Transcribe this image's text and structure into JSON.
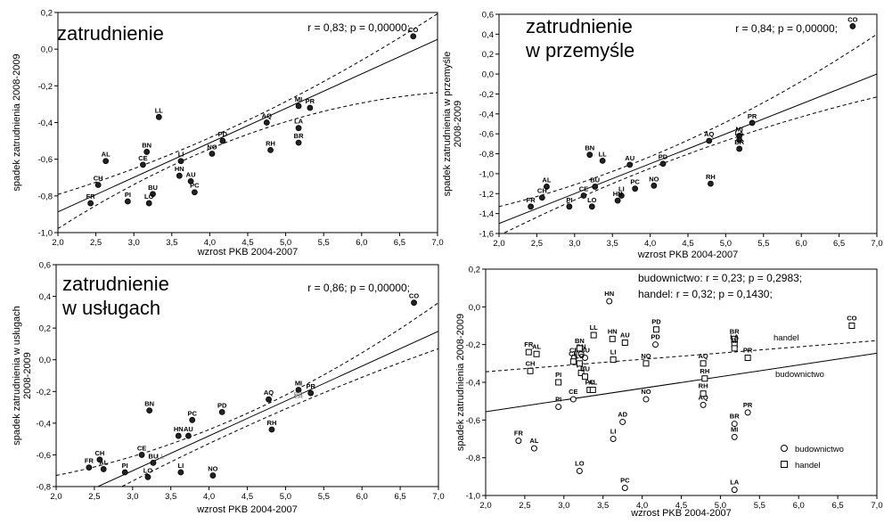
{
  "chart_data": [
    {
      "type": "scatter",
      "title": "zatrudnienie",
      "stat": "r = 0,83; p = 0,00000;",
      "xlabel": "wzrost PKB 2004-2007",
      "ylabel": "spadek zatrudnienia 2008-2009",
      "xlim": [
        2.0,
        7.0
      ],
      "ylim": [
        -1.0,
        0.2
      ],
      "xticks": [
        "2,0",
        "2,5",
        "3,0",
        "3,5",
        "4,0",
        "4,5",
        "5,0",
        "5,5",
        "6,0",
        "6,5",
        "7,0"
      ],
      "yticks": [
        "0,2",
        "0,0",
        "-0,2",
        "-0,4",
        "-0,6",
        "-0,8",
        "-1,0"
      ],
      "points": [
        {
          "label": "CO",
          "x": 6.68,
          "y": 0.07
        },
        {
          "label": "MI",
          "x": 5.17,
          "y": -0.31
        },
        {
          "label": "PR",
          "x": 5.32,
          "y": -0.32
        },
        {
          "label": "AQ",
          "x": 4.75,
          "y": -0.4
        },
        {
          "label": "LA",
          "x": 5.17,
          "y": -0.43
        },
        {
          "label": "BR",
          "x": 5.17,
          "y": -0.51
        },
        {
          "label": "RH",
          "x": 4.8,
          "y": -0.55
        },
        {
          "label": "PD",
          "x": 4.17,
          "y": -0.5
        },
        {
          "label": "NO",
          "x": 4.03,
          "y": -0.57
        },
        {
          "label": "LL",
          "x": 3.33,
          "y": -0.37
        },
        {
          "label": "LI",
          "x": 3.62,
          "y": -0.61
        },
        {
          "label": "HN",
          "x": 3.6,
          "y": -0.69
        },
        {
          "label": "AU",
          "x": 3.75,
          "y": -0.72
        },
        {
          "label": "PC",
          "x": 3.8,
          "y": -0.78
        },
        {
          "label": "BN",
          "x": 3.17,
          "y": -0.56
        },
        {
          "label": "CE",
          "x": 3.12,
          "y": -0.63
        },
        {
          "label": "AL",
          "x": 2.63,
          "y": -0.61
        },
        {
          "label": "CH",
          "x": 2.53,
          "y": -0.74
        },
        {
          "label": "BU",
          "x": 3.25,
          "y": -0.79
        },
        {
          "label": "FR",
          "x": 2.43,
          "y": -0.84
        },
        {
          "label": "PI",
          "x": 2.92,
          "y": -0.83
        },
        {
          "label": "LO",
          "x": 3.2,
          "y": -0.84
        }
      ],
      "fit": {
        "a": -1.263,
        "b": 0.188
      },
      "ci": [
        {
          "x": 2.0,
          "lo": -0.978,
          "hi": -0.792
        },
        {
          "x": 4.35,
          "lo": -0.487,
          "hi": -0.417
        },
        {
          "x": 7.0,
          "lo": -0.237,
          "hi": 0.193
        }
      ]
    },
    {
      "type": "scatter",
      "title_lines": [
        "zatrudnienie",
        "w przemyśle"
      ],
      "stat": "r = 0,84; p = 0,00000;",
      "xlabel": "wzrost PKB 2004-2007",
      "ylabel_lines": [
        "spadek zatrudnienia w przemyśle",
        "2008-2009"
      ],
      "xlim": [
        2.0,
        7.0
      ],
      "ylim": [
        -1.6,
        0.6
      ],
      "xticks": [
        "2,0",
        "2,5",
        "3,0",
        "3,5",
        "4,0",
        "4,5",
        "5,0",
        "5,5",
        "6,0",
        "6,5",
        "7,0"
      ],
      "yticks": [
        "0,6",
        "0,4",
        "0,2",
        "0,0",
        "-0,2",
        "-0,4",
        "-0,6",
        "-0,8",
        "-1,0",
        "-1,2",
        "-1,4",
        "-1,6"
      ],
      "points": [
        {
          "label": "CO",
          "x": 6.68,
          "y": 0.48
        },
        {
          "label": "PR",
          "x": 5.35,
          "y": -0.49
        },
        {
          "label": "AQ",
          "x": 4.78,
          "y": -0.67
        },
        {
          "label": "MI",
          "x": 5.18,
          "y": -0.62
        },
        {
          "label": "LA",
          "x": 5.18,
          "y": -0.66
        },
        {
          "label": "BR",
          "x": 5.18,
          "y": -0.75
        },
        {
          "label": "RH",
          "x": 4.8,
          "y": -1.1
        },
        {
          "label": "PD",
          "x": 4.17,
          "y": -0.9
        },
        {
          "label": "BN",
          "x": 3.2,
          "y": -0.81
        },
        {
          "label": "LL",
          "x": 3.37,
          "y": -0.87
        },
        {
          "label": "AU",
          "x": 3.73,
          "y": -0.91
        },
        {
          "label": "BU",
          "x": 3.27,
          "y": -1.13
        },
        {
          "label": "PC",
          "x": 3.8,
          "y": -1.15
        },
        {
          "label": "NO",
          "x": 4.05,
          "y": -1.12
        },
        {
          "label": "AL",
          "x": 2.63,
          "y": -1.13
        },
        {
          "label": "CE",
          "x": 3.12,
          "y": -1.22
        },
        {
          "label": "LI",
          "x": 3.62,
          "y": -1.22
        },
        {
          "label": "HN",
          "x": 3.57,
          "y": -1.27
        },
        {
          "label": "LO",
          "x": 3.23,
          "y": -1.33
        },
        {
          "label": "CH",
          "x": 2.57,
          "y": -1.24
        },
        {
          "label": "FR",
          "x": 2.42,
          "y": -1.33
        },
        {
          "label": "PI",
          "x": 2.93,
          "y": -1.33
        }
      ],
      "fit": {
        "a": -2.1,
        "b": 0.3
      },
      "ci": [
        {
          "x": 2.0,
          "lo": -1.62,
          "hi": -1.33
        },
        {
          "x": 4.35,
          "lo": -0.845,
          "hi": -0.715
        },
        {
          "x": 7.0,
          "lo": -0.23,
          "hi": 0.4
        }
      ]
    },
    {
      "type": "scatter",
      "title_lines": [
        "zatrudnienie",
        "w usługach"
      ],
      "stat": "r = 0,86; p = 0,00000;",
      "xlabel": "wzrost PKB 2004-2007",
      "ylabel_lines": [
        "spadek zatrudnienia w usługach",
        "2008-2009"
      ],
      "xlim": [
        2.0,
        7.0
      ],
      "ylim": [
        -0.8,
        0.6
      ],
      "xticks": [
        "2,0",
        "2,5",
        "3,0",
        "3,5",
        "4,0",
        "4,5",
        "5,0",
        "5,5",
        "6,0",
        "6,5",
        "7,0"
      ],
      "yticks": [
        "0,6",
        "0,4",
        "0,2",
        "0,0",
        "-0,2",
        "-0,4",
        "-0,6",
        "-0,8"
      ],
      "points": [
        {
          "label": "CO",
          "x": 6.68,
          "y": 0.36
        },
        {
          "label": "MI",
          "x": 5.17,
          "y": -0.19
        },
        {
          "label": "PR",
          "x": 5.33,
          "y": -0.21
        },
        {
          "label": "AQ",
          "x": 4.78,
          "y": -0.25
        },
        {
          "label": "BR",
          "x": 5.17,
          "y": -0.25,
          "grey": true
        },
        {
          "label": "LA",
          "x": 5.17,
          "y": -0.26,
          "grey": true
        },
        {
          "label": "RH",
          "x": 4.82,
          "y": -0.44
        },
        {
          "label": "PD",
          "x": 4.17,
          "y": -0.33
        },
        {
          "label": "PC",
          "x": 3.78,
          "y": -0.38
        },
        {
          "label": "BN",
          "x": 3.22,
          "y": -0.32
        },
        {
          "label": "HN",
          "x": 3.6,
          "y": -0.48
        },
        {
          "label": "AU",
          "x": 3.73,
          "y": -0.48
        },
        {
          "label": "CE",
          "x": 3.12,
          "y": -0.6
        },
        {
          "label": "BU",
          "x": 3.27,
          "y": -0.65
        },
        {
          "label": "LI",
          "x": 3.63,
          "y": -0.71
        },
        {
          "label": "NO",
          "x": 4.05,
          "y": -0.73
        },
        {
          "label": "CH",
          "x": 2.57,
          "y": -0.63
        },
        {
          "label": "FR",
          "x": 2.43,
          "y": -0.68
        },
        {
          "label": "AL",
          "x": 2.62,
          "y": -0.69
        },
        {
          "label": "PI",
          "x": 2.9,
          "y": -0.71
        },
        {
          "label": "LO",
          "x": 3.2,
          "y": -0.74
        },
        {
          "label": "LL",
          "x": 3.37,
          "y": -0.64,
          "grey": true
        }
      ],
      "fit": {
        "a": -1.36,
        "b": 0.22
      },
      "ci": [
        {
          "x": 2.0,
          "lo": -1.02,
          "hi": -0.73
        },
        {
          "x": 4.35,
          "lo": -0.45,
          "hi": -0.37
        },
        {
          "x": 7.0,
          "lo": 0.07,
          "hi": 0.36
        }
      ]
    },
    {
      "type": "scatter",
      "stat_lines": [
        "budownictwo:  r = 0,23; p = 0,2983;",
        "handel:  r = 0,32; p = 0,1430;"
      ],
      "xlabel": "wzrost PKB 2004-2007",
      "ylabel": "spadek zatrudnienia 2008-2009",
      "xlim": [
        2.0,
        7.0
      ],
      "ylim": [
        -1.0,
        0.2
      ],
      "xticks": [
        "2,0",
        "2,5",
        "3,0",
        "3,5",
        "4,0",
        "4,5",
        "5,0",
        "5,5",
        "6,0",
        "6,5",
        "7,0"
      ],
      "yticks": [
        "0,2",
        "0,0",
        "-0,2",
        "-0,4",
        "-0,6",
        "-0,8",
        "-1,0"
      ],
      "series": [
        {
          "name": "budownictwo",
          "marker": "circle",
          "line_label": "budownictwo",
          "fit": {
            "a": -0.68,
            "b": 0.062
          },
          "points": [
            {
              "label": "HN",
              "x": 3.58,
              "y": 0.03
            },
            {
              "label": "BN",
              "x": 3.22,
              "y": -0.25
            },
            {
              "label": "CE",
              "x": 3.13,
              "y": -0.27
            },
            {
              "label": "BU",
              "x": 3.27,
              "y": -0.27
            },
            {
              "label": "PI",
              "x": 2.93,
              "y": -0.53
            },
            {
              "label": "CE",
              "x": 3.12,
              "y": -0.49
            },
            {
              "label": "NO",
              "x": 4.05,
              "y": -0.49
            },
            {
              "label": "AQ",
              "x": 4.78,
              "y": -0.52
            },
            {
              "label": "PR",
              "x": 5.35,
              "y": -0.56
            },
            {
              "label": "AD",
              "x": 3.75,
              "y": -0.61
            },
            {
              "label": "LI",
              "x": 3.63,
              "y": -0.7
            },
            {
              "label": "FR",
              "x": 2.42,
              "y": -0.71
            },
            {
              "label": "AL",
              "x": 2.62,
              "y": -0.75
            },
            {
              "label": "MI",
              "x": 5.18,
              "y": -0.69
            },
            {
              "label": "BR",
              "x": 5.18,
              "y": -0.62
            },
            {
              "label": "LO",
              "x": 3.2,
              "y": -0.87
            },
            {
              "label": "PC",
              "x": 3.78,
              "y": -0.96
            },
            {
              "label": "LA",
              "x": 5.18,
              "y": -0.97
            },
            {
              "label": "PD",
              "x": 4.17,
              "y": -0.2
            }
          ]
        },
        {
          "name": "handel",
          "marker": "square",
          "line_label": "handel",
          "fit": {
            "a": -0.41,
            "b": 0.033
          },
          "points": [
            {
              "label": "CO",
              "x": 6.68,
              "y": -0.1
            },
            {
              "label": "PD",
              "x": 4.18,
              "y": -0.12
            },
            {
              "label": "HN",
              "x": 3.62,
              "y": -0.17
            },
            {
              "label": "LL",
              "x": 3.38,
              "y": -0.15
            },
            {
              "label": "AU",
              "x": 3.78,
              "y": -0.19
            },
            {
              "label": "FR",
              "x": 2.55,
              "y": -0.24
            },
            {
              "label": "CH",
              "x": 2.57,
              "y": -0.34
            },
            {
              "label": "AL",
              "x": 2.65,
              "y": -0.25
            },
            {
              "label": "LI",
              "x": 3.63,
              "y": -0.28
            },
            {
              "label": "BR",
              "x": 5.18,
              "y": -0.17
            },
            {
              "label": "LA",
              "x": 5.18,
              "y": -0.2
            },
            {
              "label": "MI",
              "x": 5.18,
              "y": -0.22
            },
            {
              "label": "PR",
              "x": 5.35,
              "y": -0.27
            },
            {
              "label": "AQ",
              "x": 4.78,
              "y": -0.3
            },
            {
              "label": "NO",
              "x": 4.05,
              "y": -0.3
            },
            {
              "label": "PI",
              "x": 2.93,
              "y": -0.4
            },
            {
              "label": "RH",
              "x": 4.8,
              "y": -0.38
            },
            {
              "label": "PC",
              "x": 3.22,
              "y": -0.35
            },
            {
              "label": "CE",
              "x": 3.12,
              "y": -0.29
            },
            {
              "label": "BU",
              "x": 3.27,
              "y": -0.37
            },
            {
              "label": "RH",
              "x": 4.78,
              "y": -0.46
            },
            {
              "label": "LO",
              "x": 3.2,
              "y": -0.3
            },
            {
              "label": "BN",
              "x": 3.2,
              "y": -0.22
            },
            {
              "label": "PC",
              "x": 3.33,
              "y": -0.44
            },
            {
              "label": "AL",
              "x": 3.37,
              "y": -0.44
            }
          ]
        }
      ],
      "legend": {
        "position": "bottom-right",
        "items": [
          "budownictwo",
          "handel"
        ]
      }
    }
  ]
}
